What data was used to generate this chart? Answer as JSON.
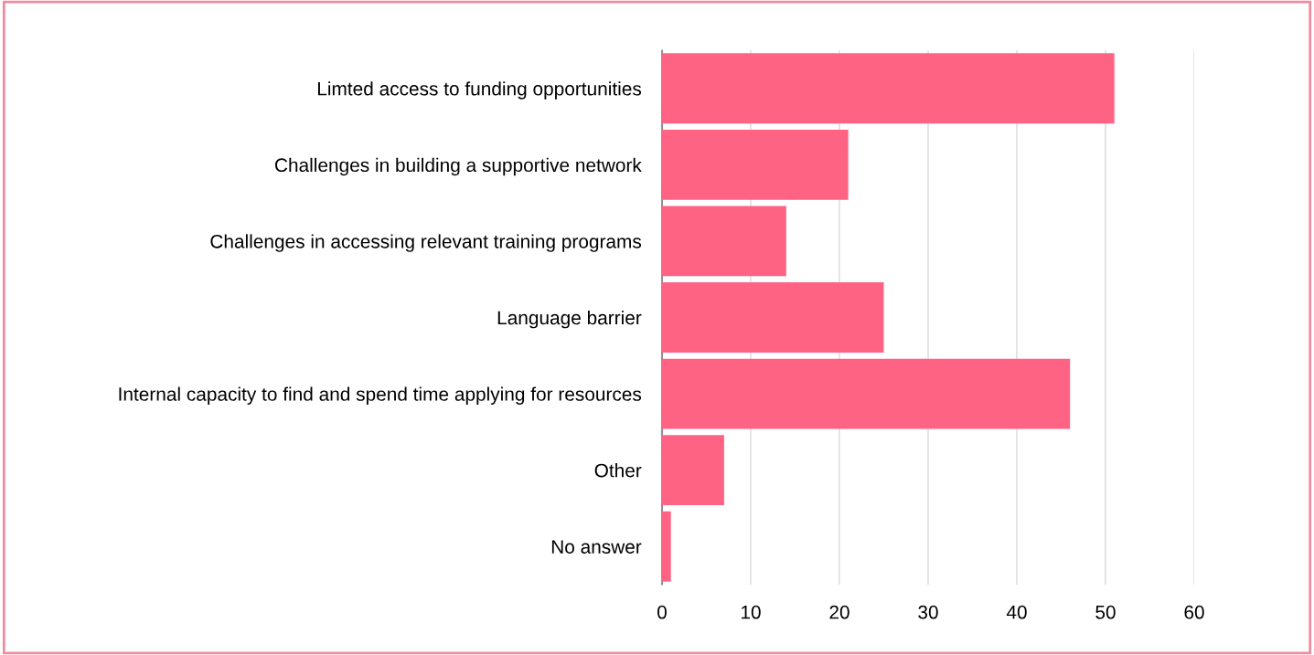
{
  "chart_data": {
    "type": "bar",
    "orientation": "horizontal",
    "categories": [
      "Limted access to funding opportunities",
      "Challenges in building a supportive network",
      "Challenges in accessing relevant training programs",
      "Language barrier",
      "Internal capacity to find and spend time applying for resources",
      "Other",
      "No answer"
    ],
    "values": [
      51,
      21,
      14,
      25,
      46,
      7,
      1
    ],
    "color": "#ff6384",
    "xlim": [
      0,
      60
    ],
    "xticks": [
      0,
      10,
      20,
      30,
      40,
      50,
      60
    ],
    "grid": "x"
  }
}
